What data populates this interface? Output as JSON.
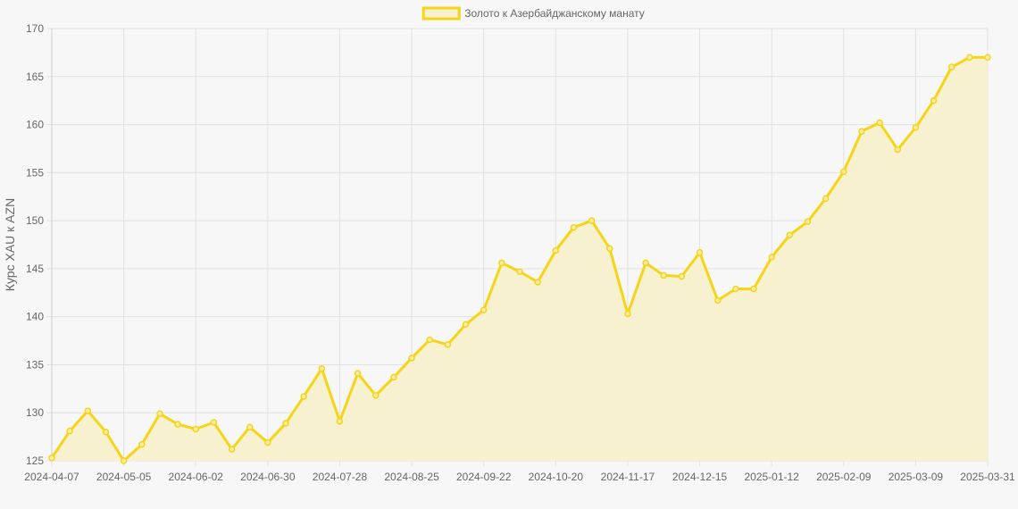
{
  "chart_data": {
    "type": "area",
    "title": "",
    "xlabel": "",
    "ylabel": "Курс XAU к AZN",
    "ylim": [
      125,
      170
    ],
    "y_ticks": [
      125,
      130,
      135,
      140,
      145,
      150,
      155,
      160,
      165,
      170
    ],
    "x_tick_labels": [
      "2024-04-07",
      "2024-05-05",
      "2024-06-02",
      "2024-06-30",
      "2024-07-28",
      "2024-08-25",
      "2024-09-22",
      "2024-10-20",
      "2024-11-17",
      "2024-12-15",
      "2025-01-12",
      "2025-02-09",
      "2025-03-09",
      "2025-03-31"
    ],
    "grid": true,
    "legend_position": "top-center",
    "colors": {
      "line": "#f5d516",
      "fill": "#f8f1cf",
      "grid": "#e2e2e2",
      "background": "#f7f7f7"
    },
    "series": [
      {
        "name": "Золото к Азербайджанскому манату",
        "values": [
          125.3,
          128.1,
          130.2,
          128.0,
          125.0,
          126.7,
          129.9,
          128.8,
          128.3,
          129.0,
          126.2,
          128.5,
          126.9,
          128.9,
          131.7,
          134.6,
          129.1,
          134.1,
          131.8,
          133.7,
          135.7,
          137.6,
          137.1,
          139.2,
          140.7,
          145.6,
          144.7,
          143.6,
          146.9,
          149.3,
          150.0,
          147.1,
          140.3,
          145.6,
          144.3,
          144.2,
          146.7,
          141.7,
          142.9,
          142.9,
          146.2,
          148.5,
          149.9,
          152.3,
          155.1,
          159.3,
          160.2,
          157.4,
          159.7,
          162.5,
          166.0,
          167.0,
          167.0
        ]
      }
    ]
  }
}
